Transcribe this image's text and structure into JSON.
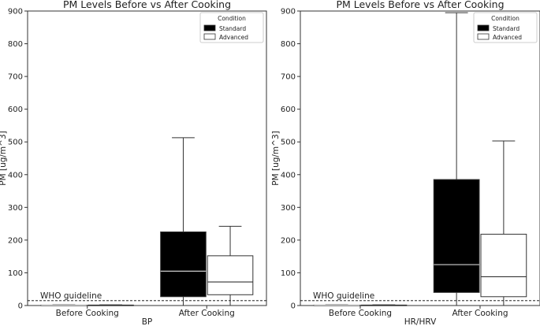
{
  "chart_data": [
    {
      "type": "box",
      "title": "PM Levels Before vs After Cooking",
      "xlabel": "BP",
      "ylabel": "PM [ug/m^3]",
      "ylim": [
        0,
        900
      ],
      "yticks": [
        0,
        100,
        200,
        300,
        400,
        500,
        600,
        700,
        800,
        900
      ],
      "categories": [
        "Before Cooking",
        "After Cooking"
      ],
      "legend": {
        "title": "Condition",
        "placement": "top-right",
        "entries": [
          "Standard",
          "Advanced"
        ]
      },
      "reference_line": {
        "label": "WHO guideline",
        "value": 15,
        "style": "dashed"
      },
      "grid": false,
      "series": [
        {
          "name": "Standard",
          "color": "#000000",
          "boxes": [
            {
              "category": "Before Cooking",
              "whisker_low": 0,
              "q1": 0.5,
              "median": 1,
              "q3": 1.5,
              "whisker_high": 2
            },
            {
              "category": "After Cooking",
              "whisker_low": 0,
              "q1": 27,
              "median": 105,
              "q3": 225,
              "whisker_high": 513
            }
          ]
        },
        {
          "name": "Advanced",
          "color": "#ffffff",
          "boxes": [
            {
              "category": "Before Cooking",
              "whisker_low": 0,
              "q1": 0.5,
              "median": 1,
              "q3": 1.5,
              "whisker_high": 2
            },
            {
              "category": "After Cooking",
              "whisker_low": 0,
              "q1": 33,
              "median": 72,
              "q3": 152,
              "whisker_high": 242
            }
          ]
        }
      ]
    },
    {
      "type": "box",
      "title": "PM Levels Before vs After Cooking",
      "xlabel": "HR/HRV",
      "ylabel": "PM [ug/m^3]",
      "ylim": [
        0,
        900
      ],
      "yticks": [
        0,
        100,
        200,
        300,
        400,
        500,
        600,
        700,
        800,
        900
      ],
      "categories": [
        "Before Cooking",
        "After Cooking"
      ],
      "legend": {
        "title": "Condition",
        "placement": "top-right",
        "entries": [
          "Standard",
          "Advanced"
        ]
      },
      "reference_line": {
        "label": "WHO guideline",
        "value": 15,
        "style": "dashed"
      },
      "grid": false,
      "series": [
        {
          "name": "Standard",
          "color": "#000000",
          "boxes": [
            {
              "category": "Before Cooking",
              "whisker_low": 0,
              "q1": 0.5,
              "median": 1,
              "q3": 1.5,
              "whisker_high": 2
            },
            {
              "category": "After Cooking",
              "whisker_low": 0,
              "q1": 40,
              "median": 125,
              "q3": 385,
              "whisker_high": 895
            }
          ]
        },
        {
          "name": "Advanced",
          "color": "#ffffff",
          "boxes": [
            {
              "category": "Before Cooking",
              "whisker_low": 0,
              "q1": 0.5,
              "median": 1,
              "q3": 1.5,
              "whisker_high": 2
            },
            {
              "category": "After Cooking",
              "whisker_low": 0,
              "q1": 27,
              "median": 88,
              "q3": 218,
              "whisker_high": 503
            }
          ]
        }
      ]
    }
  ]
}
